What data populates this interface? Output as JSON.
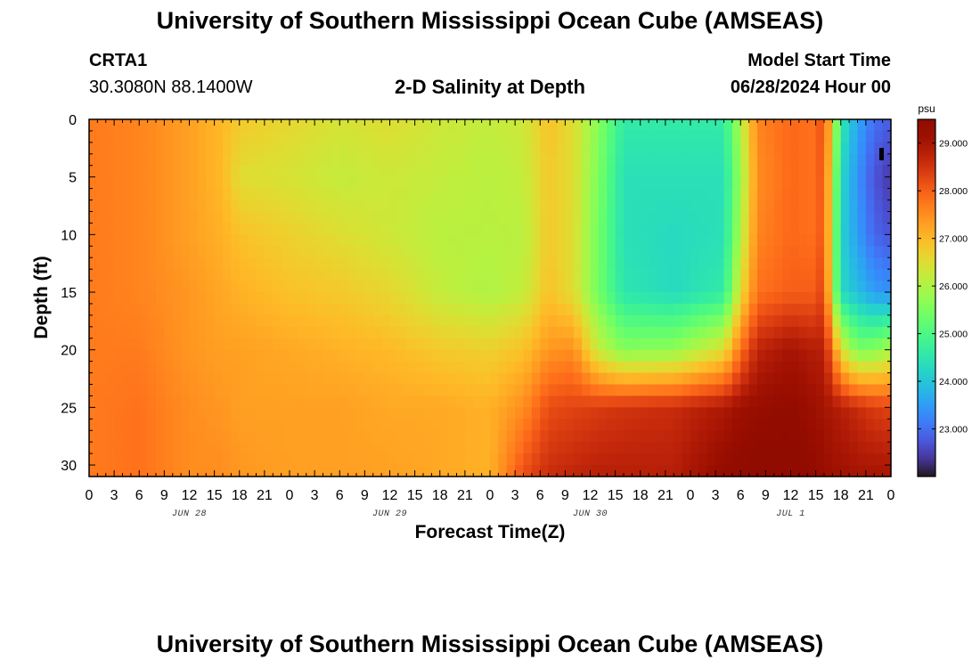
{
  "header": {
    "title": "University of Southern Mississippi Ocean Cube (AMSEAS)",
    "station_id": "CRTA1",
    "coordinates": "30.3080N  88.1400W",
    "plot_title": "2-D Salinity at Depth",
    "model_start_label": "Model Start Time",
    "model_start_value": "06/28/2024 Hour 00"
  },
  "footer": {
    "title": "University of Southern Mississippi Ocean Cube (AMSEAS)"
  },
  "chart_data": {
    "type": "heatmap",
    "title": "2-D Salinity at Depth",
    "xlabel": "Forecast Time(Z)",
    "ylabel": "Depth (ft)",
    "x_tick_labels": [
      "0",
      "3",
      "6",
      "9",
      "12",
      "15",
      "18",
      "21",
      "0",
      "3",
      "6",
      "9",
      "12",
      "15",
      "18",
      "21",
      "0",
      "3",
      "6",
      "9",
      "12",
      "15",
      "18",
      "21",
      "0",
      "3",
      "6",
      "9",
      "12",
      "15",
      "18",
      "21",
      "0"
    ],
    "x_range_hours": [
      0,
      96
    ],
    "date_labels": [
      {
        "label": "JUN 28",
        "hour": 12
      },
      {
        "label": "JUN 29",
        "hour": 36
      },
      {
        "label": "JUN 30",
        "hour": 60
      },
      {
        "label": "JUL 1",
        "hour": 84
      }
    ],
    "y_ticks": [
      0,
      5,
      10,
      15,
      20,
      25,
      30
    ],
    "y_range": [
      0,
      31
    ],
    "y_inverted": true,
    "colorbar": {
      "unit": "psu",
      "range": [
        22.0,
        29.5
      ],
      "ticks": [
        "23.000",
        "24.000",
        "25.000",
        "26.000",
        "27.000",
        "28.000",
        "29.000"
      ],
      "tick_values": [
        23,
        24,
        25,
        26,
        27,
        28,
        29
      ],
      "colormap": "turbo"
    },
    "depth_levels": [
      0,
      5,
      10,
      15,
      20,
      25,
      31
    ],
    "salinity_columns": [
      {
        "hour": 0,
        "values": [
          27.7,
          27.7,
          27.7,
          27.7,
          27.7,
          27.7,
          27.7
        ]
      },
      {
        "hour": 6,
        "values": [
          27.6,
          27.6,
          27.6,
          27.6,
          27.7,
          27.8,
          27.8
        ]
      },
      {
        "hour": 12,
        "values": [
          27.3,
          27.3,
          27.3,
          27.4,
          27.4,
          27.5,
          27.5
        ]
      },
      {
        "hour": 16,
        "values": [
          27.0,
          27.0,
          27.1,
          27.2,
          27.3,
          27.4,
          27.5
        ]
      },
      {
        "hour": 18,
        "values": [
          26.8,
          26.5,
          26.9,
          27.1,
          27.3,
          27.3,
          27.4
        ]
      },
      {
        "hour": 24,
        "values": [
          26.6,
          26.4,
          26.7,
          26.9,
          27.2,
          27.3,
          27.3
        ]
      },
      {
        "hour": 30,
        "values": [
          26.4,
          26.2,
          26.5,
          26.8,
          27.1,
          27.3,
          27.3
        ]
      },
      {
        "hour": 36,
        "values": [
          26.5,
          26.3,
          26.3,
          26.6,
          27.0,
          27.2,
          27.3
        ]
      },
      {
        "hour": 42,
        "values": [
          26.3,
          26.2,
          26.1,
          26.2,
          26.8,
          27.2,
          27.2
        ]
      },
      {
        "hour": 48,
        "values": [
          26.2,
          26.1,
          26.1,
          26.0,
          26.7,
          27.1,
          27.1
        ]
      },
      {
        "hour": 52,
        "values": [
          26.3,
          26.2,
          26.1,
          26.2,
          26.9,
          27.5,
          28.2
        ]
      },
      {
        "hour": 55,
        "values": [
          26.9,
          26.8,
          26.8,
          26.9,
          27.4,
          28.2,
          28.6
        ]
      },
      {
        "hour": 58,
        "values": [
          26.5,
          26.5,
          26.5,
          26.5,
          27.5,
          28.3,
          28.7
        ]
      },
      {
        "hour": 61,
        "values": [
          25.6,
          25.5,
          25.4,
          25.4,
          26.2,
          28.4,
          28.8
        ]
      },
      {
        "hour": 64,
        "values": [
          24.6,
          24.4,
          24.4,
          24.5,
          25.6,
          28.5,
          28.8
        ]
      },
      {
        "hour": 70,
        "values": [
          24.6,
          24.4,
          24.3,
          24.3,
          25.7,
          28.6,
          28.8
        ]
      },
      {
        "hour": 76,
        "values": [
          24.6,
          24.4,
          24.4,
          24.6,
          26.5,
          28.9,
          29.3
        ]
      },
      {
        "hour": 78,
        "values": [
          26.0,
          25.8,
          26.0,
          26.5,
          27.8,
          29.1,
          29.4
        ]
      },
      {
        "hour": 80,
        "values": [
          27.6,
          27.5,
          27.6,
          27.8,
          28.7,
          29.2,
          29.5
        ]
      },
      {
        "hour": 84,
        "values": [
          27.9,
          27.9,
          27.9,
          28.0,
          29.0,
          29.3,
          29.5
        ]
      },
      {
        "hour": 87,
        "values": [
          27.8,
          27.8,
          27.8,
          28.0,
          28.8,
          29.1,
          29.3
        ]
      },
      {
        "hour": 88,
        "values": [
          28.3,
          28.2,
          28.2,
          28.4,
          28.8,
          29.0,
          29.2
        ]
      },
      {
        "hour": 89,
        "values": [
          26.5,
          26.2,
          26.1,
          26.1,
          27.8,
          28.9,
          29.1
        ]
      },
      {
        "hour": 90,
        "values": [
          24.6,
          24.3,
          24.2,
          24.3,
          26.5,
          28.8,
          29.1
        ]
      },
      {
        "hour": 92,
        "values": [
          23.6,
          23.4,
          23.5,
          23.9,
          25.5,
          28.6,
          29.0
        ]
      },
      {
        "hour": 94,
        "values": [
          23.0,
          22.7,
          22.9,
          23.5,
          25.6,
          28.4,
          29.0
        ]
      },
      {
        "hour": 96,
        "values": [
          22.8,
          22.4,
          22.7,
          23.4,
          26.0,
          28.3,
          29.0
        ]
      }
    ]
  }
}
